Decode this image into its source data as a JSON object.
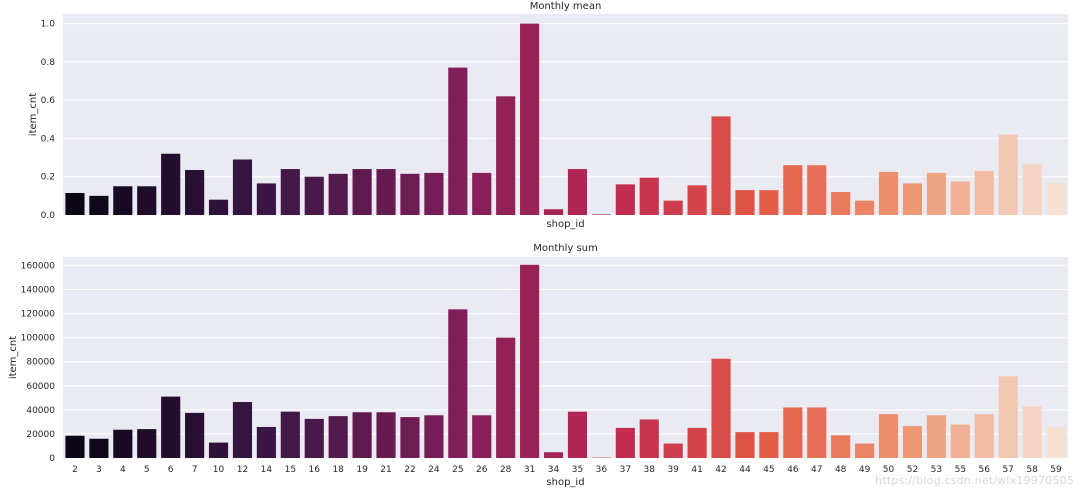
{
  "chart_data": [
    {
      "type": "bar",
      "title": "Monthly mean",
      "xlabel": "shop_id",
      "ylabel": "item_cnt",
      "ylim": [
        0,
        1.05
      ],
      "yticks": [
        0.0,
        0.2,
        0.4,
        0.6,
        0.8,
        1.0
      ],
      "ytick_labels": [
        "0.0",
        "0.2",
        "0.4",
        "0.6",
        "0.8",
        "1.0"
      ],
      "grid": true,
      "show_xtick_labels": false,
      "categories": [
        "2",
        "3",
        "4",
        "5",
        "6",
        "7",
        "10",
        "12",
        "14",
        "15",
        "16",
        "18",
        "19",
        "21",
        "22",
        "24",
        "25",
        "26",
        "28",
        "31",
        "34",
        "35",
        "36",
        "37",
        "38",
        "39",
        "41",
        "42",
        "44",
        "45",
        "46",
        "47",
        "48",
        "49",
        "50",
        "52",
        "53",
        "55",
        "56",
        "57",
        "58",
        "59"
      ],
      "values": [
        0.115,
        0.1,
        0.15,
        0.15,
        0.32,
        0.235,
        0.08,
        0.29,
        0.165,
        0.24,
        0.2,
        0.215,
        0.24,
        0.24,
        0.215,
        0.22,
        0.77,
        0.22,
        0.62,
        1.0,
        0.03,
        0.24,
        0.003,
        0.16,
        0.195,
        0.075,
        0.155,
        0.515,
        0.13,
        0.13,
        0.26,
        0.26,
        0.12,
        0.075,
        0.225,
        0.165,
        0.22,
        0.175,
        0.23,
        0.42,
        0.265,
        0.17
      ]
    },
    {
      "type": "bar",
      "title": "Monthly sum",
      "xlabel": "shop_id",
      "ylabel": "item_cnt",
      "ylim": [
        0,
        167000
      ],
      "yticks": [
        0,
        20000,
        40000,
        60000,
        80000,
        100000,
        120000,
        140000,
        160000
      ],
      "ytick_labels": [
        "0",
        "20000",
        "40000",
        "60000",
        "80000",
        "100000",
        "120000",
        "140000",
        "160000"
      ],
      "grid": true,
      "show_xtick_labels": true,
      "categories": [
        "2",
        "3",
        "4",
        "5",
        "6",
        "7",
        "10",
        "12",
        "14",
        "15",
        "16",
        "18",
        "19",
        "21",
        "22",
        "24",
        "25",
        "26",
        "28",
        "31",
        "34",
        "35",
        "36",
        "37",
        "38",
        "39",
        "41",
        "42",
        "44",
        "45",
        "46",
        "47",
        "48",
        "49",
        "50",
        "52",
        "53",
        "55",
        "56",
        "57",
        "58",
        "59"
      ],
      "values": [
        18500,
        16000,
        23500,
        24000,
        51000,
        37500,
        12800,
        46500,
        25800,
        38500,
        32500,
        34800,
        38000,
        38000,
        34000,
        35500,
        123500,
        35500,
        100000,
        160500,
        4800,
        38500,
        300,
        25000,
        32000,
        12000,
        25000,
        82500,
        21500,
        21500,
        42000,
        42000,
        18800,
        12000,
        36500,
        26500,
        35500,
        27800,
        36500,
        68000,
        43000,
        26000
      ]
    }
  ],
  "watermark": "https://blog.csdn.net/wlx19970505"
}
